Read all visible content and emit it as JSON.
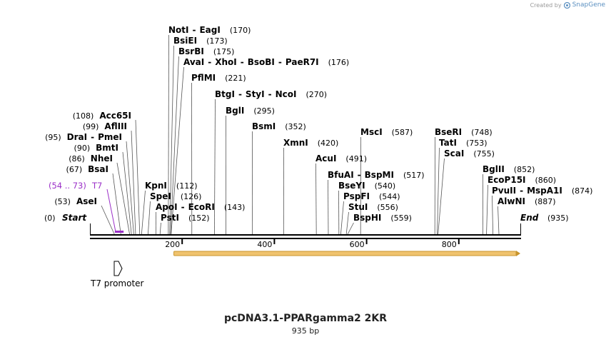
{
  "credit": {
    "text": "Created by",
    "brand": "SnapGene"
  },
  "map": {
    "name": "pcDNA3.1-PPARgamma2 2KR",
    "length_label": "935 bp",
    "length": 935,
    "start_label": "Start",
    "start_pos": "(0)",
    "end_label": "End",
    "end_pos": "(935)"
  },
  "ticks": [
    {
      "label": "200",
      "value": 200
    },
    {
      "label": "400",
      "value": 400
    },
    {
      "label": "600",
      "value": 600
    },
    {
      "label": "800",
      "value": 800
    }
  ],
  "feature": {
    "name": "T7",
    "range": "(54 .. 73)",
    "start": 54,
    "end": 73,
    "color": "#9b30c8"
  },
  "promoter": {
    "label": "T7 promoter"
  },
  "orf": {
    "start": 182,
    "end": 935,
    "color": "#f0c36e"
  },
  "sites": [
    {
      "id": "notI",
      "names": [
        "NotI",
        "EagI"
      ],
      "pos": 170,
      "pos_label": "(170)"
    },
    {
      "id": "bsiEI",
      "names": [
        "BsiEI"
      ],
      "pos": 173,
      "pos_label": "(173)"
    },
    {
      "id": "bsrBI",
      "names": [
        "BsrBI"
      ],
      "pos": 175,
      "pos_label": "(175)"
    },
    {
      "id": "avaI",
      "names": [
        "AvaI",
        "XhoI",
        "BsoBI",
        "PaeR7I"
      ],
      "pos": 176,
      "pos_label": "(176)"
    },
    {
      "id": "pflMI",
      "names": [
        "PflMI"
      ],
      "pos": 221,
      "pos_label": "(221)"
    },
    {
      "id": "btgI",
      "names": [
        "BtgI",
        "StyI",
        "NcoI"
      ],
      "pos": 270,
      "pos_label": "(270)"
    },
    {
      "id": "bglI",
      "names": [
        "BglI"
      ],
      "pos": 295,
      "pos_label": "(295)"
    },
    {
      "id": "bsmI",
      "names": [
        "BsmI"
      ],
      "pos": 352,
      "pos_label": "(352)"
    },
    {
      "id": "xmnI",
      "names": [
        "XmnI"
      ],
      "pos": 420,
      "pos_label": "(420)"
    },
    {
      "id": "mscI",
      "names": [
        "MscI"
      ],
      "pos": 587,
      "pos_label": "(587)"
    },
    {
      "id": "acuI",
      "names": [
        "AcuI"
      ],
      "pos": 491,
      "pos_label": "(491)"
    },
    {
      "id": "bfuAI",
      "names": [
        "BfuAI",
        "BspMI"
      ],
      "pos": 517,
      "pos_label": "(517)"
    },
    {
      "id": "bseYI",
      "names": [
        "BseYI"
      ],
      "pos": 540,
      "pos_label": "(540)"
    },
    {
      "id": "pspFI",
      "names": [
        "PspFI"
      ],
      "pos": 544,
      "pos_label": "(544)"
    },
    {
      "id": "stuI",
      "names": [
        "StuI"
      ],
      "pos": 556,
      "pos_label": "(556)"
    },
    {
      "id": "bspHI",
      "names": [
        "BspHI"
      ],
      "pos": 559,
      "pos_label": "(559)"
    },
    {
      "id": "bseRI",
      "names": [
        "BseRI"
      ],
      "pos": 748,
      "pos_label": "(748)"
    },
    {
      "id": "tatI",
      "names": [
        "TatI"
      ],
      "pos": 753,
      "pos_label": "(753)"
    },
    {
      "id": "scaI",
      "names": [
        "ScaI"
      ],
      "pos": 755,
      "pos_label": "(755)"
    },
    {
      "id": "bglII",
      "names": [
        "BglII"
      ],
      "pos": 852,
      "pos_label": "(852)"
    },
    {
      "id": "ecoP15I",
      "names": [
        "EcoP15I"
      ],
      "pos": 860,
      "pos_label": "(860)"
    },
    {
      "id": "pvuII",
      "names": [
        "PvuII",
        "MspA1I"
      ],
      "pos": 874,
      "pos_label": "(874)"
    },
    {
      "id": "alwNI",
      "names": [
        "AlwNI"
      ],
      "pos": 887,
      "pos_label": "(887)"
    },
    {
      "id": "kpnI",
      "names": [
        "KpnI"
      ],
      "pos": 112,
      "pos_label": "(112)"
    },
    {
      "id": "speI",
      "names": [
        "SpeI"
      ],
      "pos": 126,
      "pos_label": "(126)"
    },
    {
      "id": "apoI",
      "names": [
        "ApoI",
        "EcoRI"
      ],
      "pos": 143,
      "pos_label": "(143)"
    },
    {
      "id": "pstI",
      "names": [
        "PstI"
      ],
      "pos": 152,
      "pos_label": "(152)"
    },
    {
      "id": "acc65I",
      "names": [
        "Acc65I"
      ],
      "pos": 108,
      "pos_label": "(108)"
    },
    {
      "id": "aflIII",
      "names": [
        "AflIII"
      ],
      "pos": 99,
      "pos_label": "(99)"
    },
    {
      "id": "draI",
      "names": [
        "DraI",
        "PmeI"
      ],
      "pos": 95,
      "pos_label": "(95)"
    },
    {
      "id": "bmtI",
      "names": [
        "BmtI"
      ],
      "pos": 90,
      "pos_label": "(90)"
    },
    {
      "id": "nheI",
      "names": [
        "NheI"
      ],
      "pos": 86,
      "pos_label": "(86)"
    },
    {
      "id": "bsaI",
      "names": [
        "BsaI"
      ],
      "pos": 67,
      "pos_label": "(67)"
    },
    {
      "id": "aseI",
      "names": [
        "AseI"
      ],
      "pos": 53,
      "pos_label": "(53)"
    }
  ]
}
